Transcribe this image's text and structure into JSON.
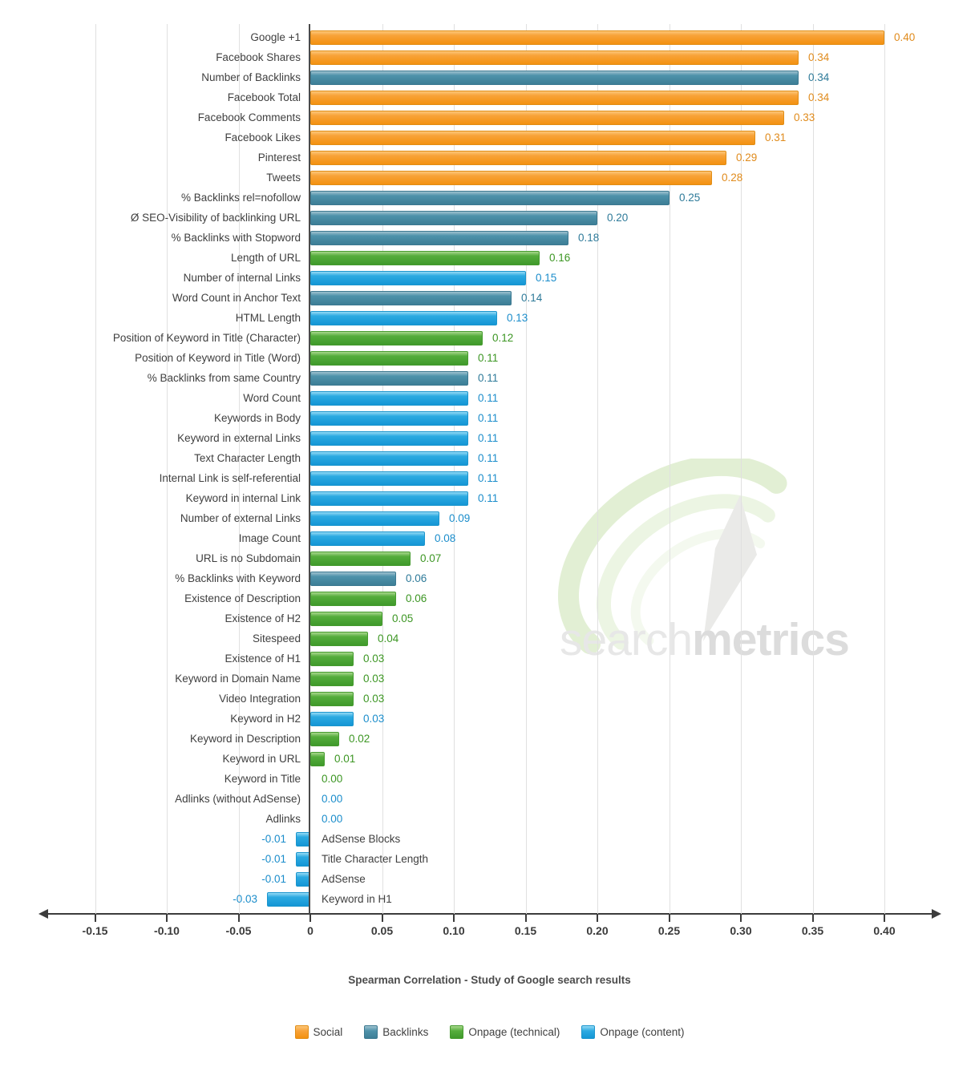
{
  "chart_data": {
    "type": "bar",
    "orientation": "horizontal",
    "title": "",
    "xlabel": "Spearman Correlation - Study of Google search results",
    "ylabel": "",
    "xlim": [
      -0.188,
      0.44
    ],
    "grid": true,
    "legend_position": "bottom",
    "x_ticks": [
      {
        "v": -0.15,
        "label": "-0.15"
      },
      {
        "v": -0.1,
        "label": "-0.10"
      },
      {
        "v": -0.05,
        "label": "-0.05"
      },
      {
        "v": 0,
        "label": "0"
      },
      {
        "v": 0.05,
        "label": "0.05"
      },
      {
        "v": 0.1,
        "label": "0.10"
      },
      {
        "v": 0.15,
        "label": "0.15"
      },
      {
        "v": 0.2,
        "label": "0.20"
      },
      {
        "v": 0.25,
        "label": "0.25"
      },
      {
        "v": 0.3,
        "label": "0.30"
      },
      {
        "v": 0.35,
        "label": "0.35"
      },
      {
        "v": 0.4,
        "label": "0.40"
      }
    ],
    "legend": [
      {
        "label": "Social",
        "key": "social"
      },
      {
        "label": "Backlinks",
        "key": "backlinks"
      },
      {
        "label": "Onpage (technical)",
        "key": "onpage_technical"
      },
      {
        "label": "Onpage (content)",
        "key": "onpage_content"
      }
    ],
    "palette": {
      "social": {
        "top": "#fcc678",
        "mid": "#f8a339",
        "bottom": "#f39110",
        "border": "#e18d15",
        "text": "#e08b1c"
      },
      "backlinks": {
        "top": "#9fc2cf",
        "mid": "#4e92aa",
        "bottom": "#3d7e96",
        "border": "#3b7890",
        "text": "#2e7a99"
      },
      "onpage_technical": {
        "top": "#a9d78d",
        "mid": "#55ad3c",
        "bottom": "#3f992b",
        "border": "#459b2e",
        "text": "#3c9623"
      },
      "onpage_content": {
        "top": "#94daf5",
        "mid": "#2caae1",
        "bottom": "#1496d5",
        "border": "#1b95cd",
        "text": "#1b8dcb"
      }
    },
    "rows": [
      {
        "label": "Google +1",
        "value": 0.4,
        "cat": "social"
      },
      {
        "label": "Facebook Shares",
        "value": 0.34,
        "cat": "social"
      },
      {
        "label": "Number of Backlinks",
        "value": 0.34,
        "cat": "backlinks"
      },
      {
        "label": "Facebook Total",
        "value": 0.34,
        "cat": "social"
      },
      {
        "label": "Facebook Comments",
        "value": 0.33,
        "cat": "social"
      },
      {
        "label": "Facebook Likes",
        "value": 0.31,
        "cat": "social"
      },
      {
        "label": "Pinterest",
        "value": 0.29,
        "cat": "social"
      },
      {
        "label": "Tweets",
        "value": 0.28,
        "cat": "social"
      },
      {
        "label": "% Backlinks rel=nofollow",
        "value": 0.25,
        "cat": "backlinks"
      },
      {
        "label": "Ø SEO-Visibility of backlinking URL",
        "value": 0.2,
        "cat": "backlinks"
      },
      {
        "label": "% Backlinks with Stopword",
        "value": 0.18,
        "cat": "backlinks"
      },
      {
        "label": "Length of URL",
        "value": 0.16,
        "cat": "onpage_technical"
      },
      {
        "label": "Number of internal Links",
        "value": 0.15,
        "cat": "onpage_content"
      },
      {
        "label": "Word Count in Anchor Text",
        "value": 0.14,
        "cat": "backlinks"
      },
      {
        "label": "HTML Length",
        "value": 0.13,
        "cat": "onpage_content"
      },
      {
        "label": "Position of Keyword in Title (Character)",
        "value": 0.12,
        "cat": "onpage_technical"
      },
      {
        "label": "Position of Keyword in Title (Word)",
        "value": 0.11,
        "cat": "onpage_technical"
      },
      {
        "label": "% Backlinks from same Country",
        "value": 0.11,
        "cat": "backlinks"
      },
      {
        "label": "Word Count",
        "value": 0.11,
        "cat": "onpage_content"
      },
      {
        "label": "Keywords in Body",
        "value": 0.11,
        "cat": "onpage_content"
      },
      {
        "label": "Keyword in external Links",
        "value": 0.11,
        "cat": "onpage_content"
      },
      {
        "label": "Text Character Length",
        "value": 0.11,
        "cat": "onpage_content"
      },
      {
        "label": "Internal Link is self-referential",
        "value": 0.11,
        "cat": "onpage_content"
      },
      {
        "label": "Keyword in internal Link",
        "value": 0.11,
        "cat": "onpage_content"
      },
      {
        "label": "Number of external Links",
        "value": 0.09,
        "cat": "onpage_content"
      },
      {
        "label": "Image Count",
        "value": 0.08,
        "cat": "onpage_content"
      },
      {
        "label": "URL is no Subdomain",
        "value": 0.07,
        "cat": "onpage_technical"
      },
      {
        "label": "% Backlinks with Keyword",
        "value": 0.06,
        "cat": "backlinks"
      },
      {
        "label": "Existence of Description",
        "value": 0.06,
        "cat": "onpage_technical"
      },
      {
        "label": "Existence of H2",
        "value": 0.05,
        "cat": "onpage_technical"
      },
      {
        "label": "Sitespeed",
        "value": 0.04,
        "cat": "onpage_technical"
      },
      {
        "label": "Existence of H1",
        "value": 0.03,
        "cat": "onpage_technical"
      },
      {
        "label": "Keyword in Domain Name",
        "value": 0.03,
        "cat": "onpage_technical"
      },
      {
        "label": "Video Integration",
        "value": 0.03,
        "cat": "onpage_technical"
      },
      {
        "label": "Keyword in H2",
        "value": 0.03,
        "cat": "onpage_content"
      },
      {
        "label": "Keyword in Description",
        "value": 0.02,
        "cat": "onpage_technical"
      },
      {
        "label": "Keyword in URL",
        "value": 0.01,
        "cat": "onpage_technical"
      },
      {
        "label": "Keyword in Title",
        "value": 0.0,
        "cat": "onpage_technical"
      },
      {
        "label": "Adlinks (without AdSense)",
        "value": 0.0,
        "cat": "onpage_content"
      },
      {
        "label": "Adlinks",
        "value": 0.0,
        "cat": "onpage_content"
      },
      {
        "label": "AdSense Blocks",
        "value": -0.01,
        "cat": "onpage_content"
      },
      {
        "label": "Title Character Length",
        "value": -0.01,
        "cat": "onpage_content"
      },
      {
        "label": "AdSense",
        "value": -0.01,
        "cat": "onpage_content"
      },
      {
        "label": "Keyword in H1",
        "value": -0.03,
        "cat": "onpage_content"
      }
    ]
  },
  "watermark": {
    "light": "search",
    "bold": "metrics",
    "swoosh_color": "#e2efd4",
    "needle_color": "#eaeae8",
    "text_light_color": "#e7e7e7",
    "text_bold_color": "#dcdcdc"
  }
}
